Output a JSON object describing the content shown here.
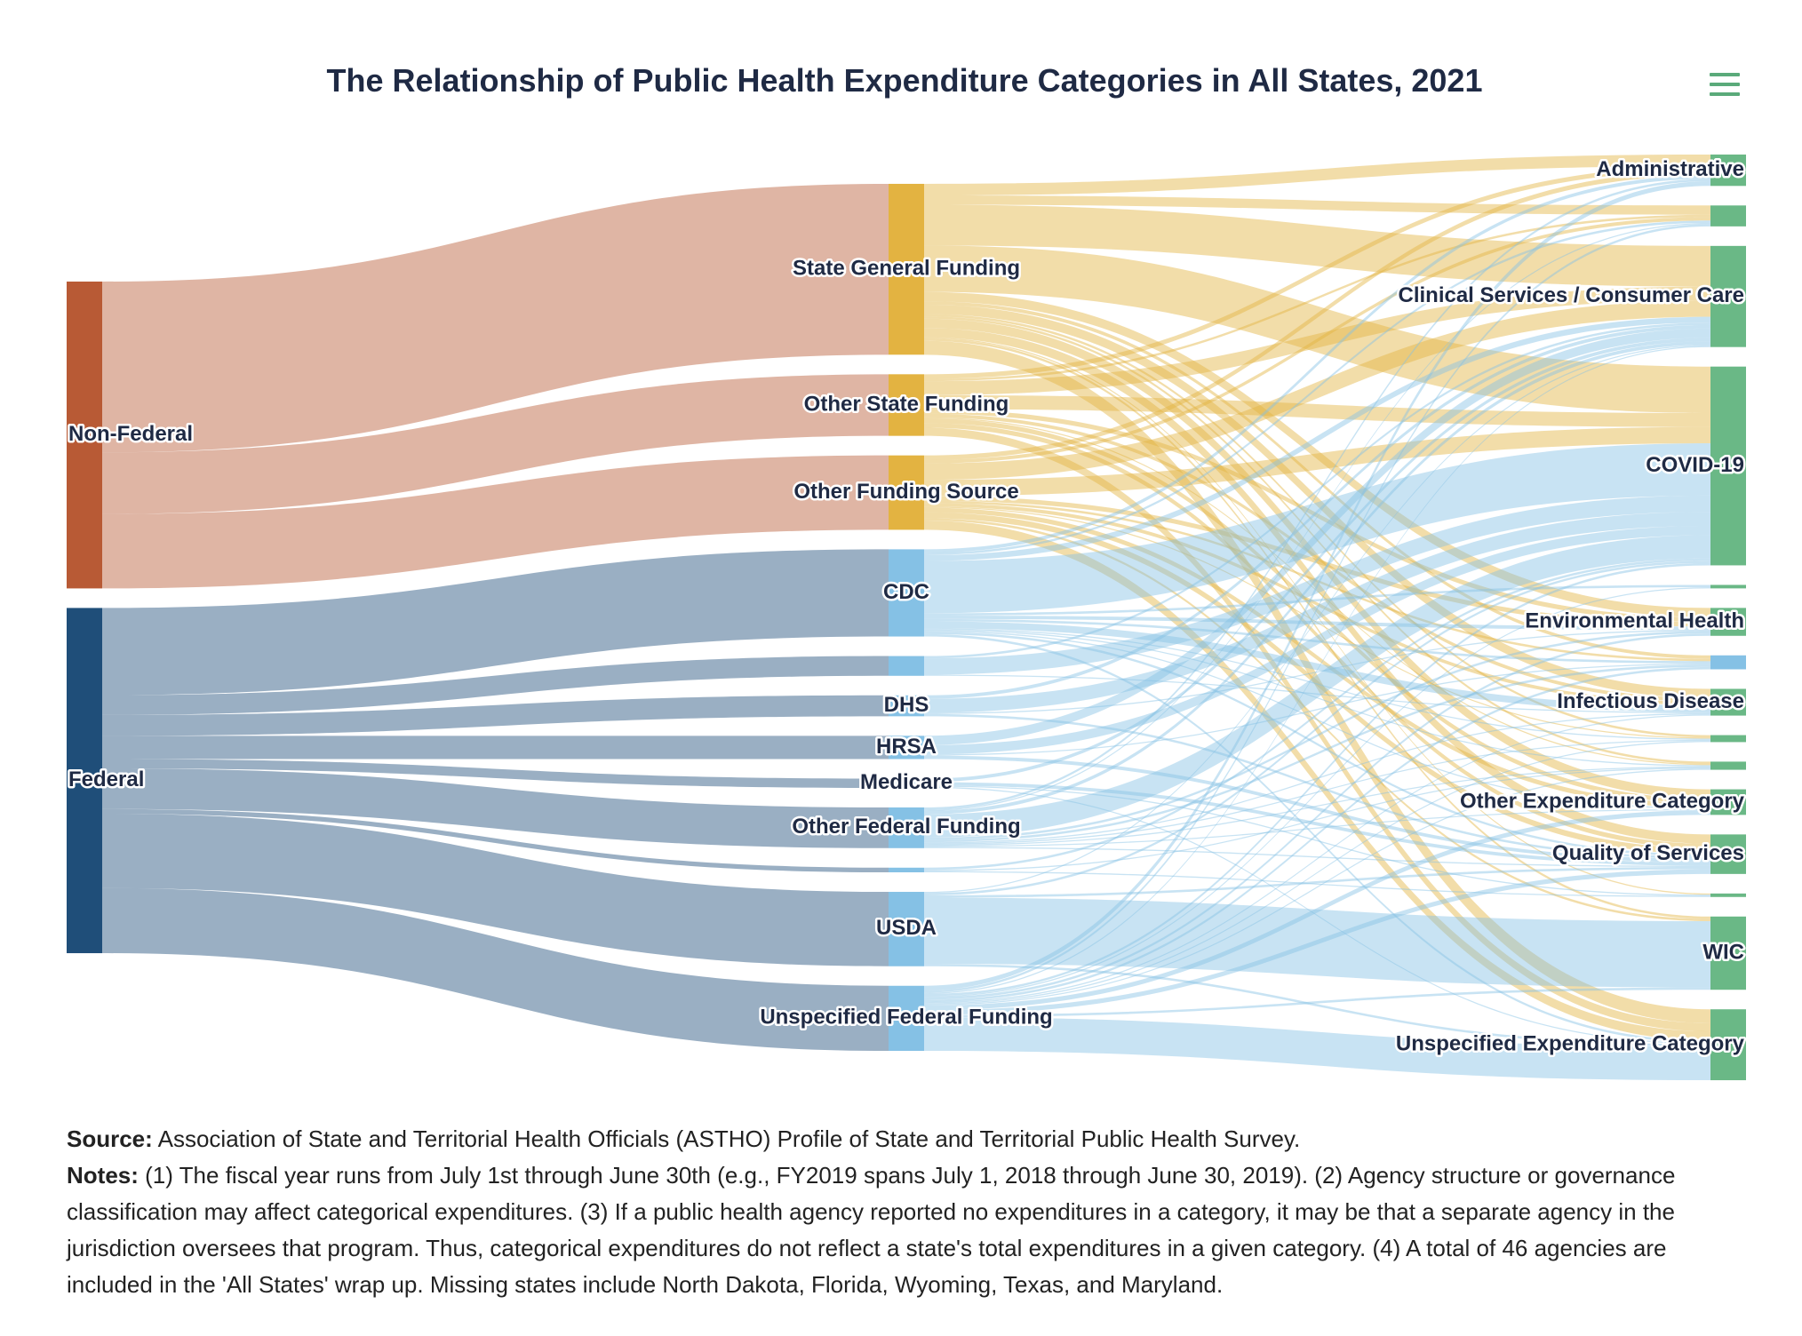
{
  "chart_data": {
    "type": "sankey",
    "title": "The Relationship of Public Health Expenditure Categories in All States, 2021",
    "nodes": [
      {
        "name": "Non-Federal",
        "color": "#b85a35"
      },
      {
        "name": "Federal",
        "color": "#1f4e79"
      },
      {
        "name": "State General Funding",
        "color": "#e3b341"
      },
      {
        "name": "Other State Funding",
        "color": "#e3b341"
      },
      {
        "name": "Other Funding Source",
        "color": "#e3b341"
      },
      {
        "name": "CDC",
        "color": "#85c1e5"
      },
      {
        "name": null,
        "color": "#85c1e5"
      },
      {
        "name": "DHS",
        "color": "#85c1e5"
      },
      {
        "name": "HRSA",
        "color": "#85c1e5"
      },
      {
        "name": "Medicare",
        "color": "#85c1e5"
      },
      {
        "name": "Other Federal Funding",
        "color": "#85c1e5"
      },
      {
        "name": null,
        "color": "#85c1e5"
      },
      {
        "name": "USDA",
        "color": "#85c1e5"
      },
      {
        "name": "Unspecified Federal Funding",
        "color": "#85c1e5"
      },
      {
        "name": "Administrative",
        "color": "#6ab886"
      },
      {
        "name": null,
        "color": "#6ab886"
      },
      {
        "name": "Clinical Services / Consumer Care",
        "color": "#6ab886"
      },
      {
        "name": "COVID-19",
        "color": "#6ab886"
      },
      {
        "name": null,
        "color": "#6ab886"
      },
      {
        "name": "Environmental Health",
        "color": "#6ab886"
      },
      {
        "name": null,
        "color": "#85c1e5"
      },
      {
        "name": "Infectious Disease",
        "color": "#6ab886"
      },
      {
        "name": null,
        "color": "#6ab886"
      },
      {
        "name": null,
        "color": "#6ab886"
      },
      {
        "name": "Other Expenditure Category",
        "color": "#6ab886"
      },
      {
        "name": "Quality of Services",
        "color": "#6ab886"
      },
      {
        "name": null,
        "color": "#6ab886"
      },
      {
        "name": "WIC",
        "color": "#6ab886"
      },
      {
        "name": "Unspecified Expenditure Category",
        "color": "#6ab886"
      }
    ],
    "links": [
      {
        "source": 0,
        "target": 2,
        "value": 147
      },
      {
        "source": 0,
        "target": 3,
        "value": 53
      },
      {
        "source": 0,
        "target": 4,
        "value": 64
      },
      {
        "source": 1,
        "target": 5,
        "value": 75
      },
      {
        "source": 1,
        "target": 6,
        "value": 17
      },
      {
        "source": 1,
        "target": 7,
        "value": 18
      },
      {
        "source": 1,
        "target": 8,
        "value": 20
      },
      {
        "source": 1,
        "target": 9,
        "value": 8
      },
      {
        "source": 1,
        "target": 10,
        "value": 35
      },
      {
        "source": 1,
        "target": 11,
        "value": 4
      },
      {
        "source": 1,
        "target": 12,
        "value": 64
      },
      {
        "source": 1,
        "target": 13,
        "value": 56
      },
      {
        "source": 2,
        "target": 14,
        "value": 10
      },
      {
        "source": 2,
        "target": 15,
        "value": 8
      },
      {
        "source": 2,
        "target": 16,
        "value": 35
      },
      {
        "source": 2,
        "target": 17,
        "value": 40
      },
      {
        "source": 2,
        "target": 19,
        "value": 8
      },
      {
        "source": 2,
        "target": 20,
        "value": 3
      },
      {
        "source": 2,
        "target": 21,
        "value": 8
      },
      {
        "source": 2,
        "target": 22,
        "value": 2
      },
      {
        "source": 2,
        "target": 23,
        "value": 2
      },
      {
        "source": 2,
        "target": 24,
        "value": 8
      },
      {
        "source": 2,
        "target": 25,
        "value": 8
      },
      {
        "source": 2,
        "target": 26,
        "value": 1
      },
      {
        "source": 2,
        "target": 27,
        "value": 2
      },
      {
        "source": 2,
        "target": 28,
        "value": 12
      },
      {
        "source": 3,
        "target": 14,
        "value": 4
      },
      {
        "source": 3,
        "target": 15,
        "value": 2
      },
      {
        "source": 3,
        "target": 16,
        "value": 12
      },
      {
        "source": 3,
        "target": 17,
        "value": 12
      },
      {
        "source": 3,
        "target": 19,
        "value": 4
      },
      {
        "source": 3,
        "target": 21,
        "value": 3
      },
      {
        "source": 3,
        "target": 23,
        "value": 1
      },
      {
        "source": 3,
        "target": 24,
        "value": 4
      },
      {
        "source": 3,
        "target": 25,
        "value": 4
      },
      {
        "source": 3,
        "target": 28,
        "value": 7
      },
      {
        "source": 4,
        "target": 14,
        "value": 4
      },
      {
        "source": 4,
        "target": 15,
        "value": 3
      },
      {
        "source": 4,
        "target": 16,
        "value": 14
      },
      {
        "source": 4,
        "target": 17,
        "value": 14
      },
      {
        "source": 4,
        "target": 19,
        "value": 4
      },
      {
        "source": 4,
        "target": 20,
        "value": 2
      },
      {
        "source": 4,
        "target": 21,
        "value": 3
      },
      {
        "source": 4,
        "target": 22,
        "value": 1
      },
      {
        "source": 4,
        "target": 24,
        "value": 4
      },
      {
        "source": 4,
        "target": 25,
        "value": 5
      },
      {
        "source": 4,
        "target": 27,
        "value": 2
      },
      {
        "source": 4,
        "target": 28,
        "value": 8
      },
      {
        "source": 5,
        "target": 14,
        "value": 3
      },
      {
        "source": 5,
        "target": 15,
        "value": 2
      },
      {
        "source": 5,
        "target": 16,
        "value": 5
      },
      {
        "source": 5,
        "target": 17,
        "value": 45
      },
      {
        "source": 5,
        "target": 18,
        "value": 2
      },
      {
        "source": 5,
        "target": 19,
        "value": 3
      },
      {
        "source": 5,
        "target": 20,
        "value": 2
      },
      {
        "source": 5,
        "target": 21,
        "value": 6
      },
      {
        "source": 5,
        "target": 22,
        "value": 1
      },
      {
        "source": 5,
        "target": 23,
        "value": 1
      },
      {
        "source": 5,
        "target": 24,
        "value": 1
      },
      {
        "source": 5,
        "target": 25,
        "value": 2
      },
      {
        "source": 5,
        "target": 28,
        "value": 2
      },
      {
        "source": 6,
        "target": 16,
        "value": 2
      },
      {
        "source": 6,
        "target": 17,
        "value": 14
      },
      {
        "source": 6,
        "target": 21,
        "value": 1
      },
      {
        "source": 7,
        "target": 16,
        "value": 3
      },
      {
        "source": 7,
        "target": 17,
        "value": 12
      },
      {
        "source": 7,
        "target": 19,
        "value": 1
      },
      {
        "source": 7,
        "target": 25,
        "value": 2
      },
      {
        "source": 8,
        "target": 16,
        "value": 8
      },
      {
        "source": 8,
        "target": 17,
        "value": 8
      },
      {
        "source": 8,
        "target": 20,
        "value": 1
      },
      {
        "source": 8,
        "target": 25,
        "value": 3
      },
      {
        "source": 9,
        "target": 16,
        "value": 3
      },
      {
        "source": 9,
        "target": 25,
        "value": 3
      },
      {
        "source": 9,
        "target": 26,
        "value": 1
      },
      {
        "source": 9,
        "target": 28,
        "value": 1
      },
      {
        "source": 10,
        "target": 14,
        "value": 2
      },
      {
        "source": 10,
        "target": 15,
        "value": 1
      },
      {
        "source": 10,
        "target": 16,
        "value": 3
      },
      {
        "source": 10,
        "target": 17,
        "value": 20
      },
      {
        "source": 10,
        "target": 19,
        "value": 2
      },
      {
        "source": 10,
        "target": 20,
        "value": 2
      },
      {
        "source": 10,
        "target": 21,
        "value": 1
      },
      {
        "source": 10,
        "target": 22,
        "value": 1
      },
      {
        "source": 10,
        "target": 23,
        "value": 1
      },
      {
        "source": 10,
        "target": 24,
        "value": 1
      },
      {
        "source": 10,
        "target": 25,
        "value": 1
      },
      {
        "source": 11,
        "target": 17,
        "value": 2
      },
      {
        "source": 11,
        "target": 23,
        "value": 1
      },
      {
        "source": 11,
        "target": 26,
        "value": 1
      },
      {
        "source": 12,
        "target": 16,
        "value": 1
      },
      {
        "source": 12,
        "target": 17,
        "value": 2
      },
      {
        "source": 12,
        "target": 25,
        "value": 2
      },
      {
        "source": 12,
        "target": 27,
        "value": 57
      },
      {
        "source": 12,
        "target": 28,
        "value": 2
      },
      {
        "source": 13,
        "target": 14,
        "value": 4
      },
      {
        "source": 13,
        "target": 15,
        "value": 2
      },
      {
        "source": 13,
        "target": 16,
        "value": 1
      },
      {
        "source": 13,
        "target": 17,
        "value": 2
      },
      {
        "source": 13,
        "target": 18,
        "value": 1
      },
      {
        "source": 13,
        "target": 19,
        "value": 2
      },
      {
        "source": 13,
        "target": 20,
        "value": 2
      },
      {
        "source": 13,
        "target": 21,
        "value": 1
      },
      {
        "source": 13,
        "target": 22,
        "value": 1
      },
      {
        "source": 13,
        "target": 23,
        "value": 1
      },
      {
        "source": 13,
        "target": 24,
        "value": 4
      },
      {
        "source": 13,
        "target": 25,
        "value": 4
      },
      {
        "source": 13,
        "target": 27,
        "value": 2
      },
      {
        "source": 13,
        "target": 28,
        "value": 29
      }
    ]
  },
  "footer": {
    "source_label": "Source:",
    "source": "Association of State and Territorial Health Officials (ASTHO) Profile of State and Territorial Public Health Survey.",
    "notes_label": "Notes:",
    "notes": "(1) The fiscal year runs from July 1st through June 30th (e.g., FY2019 spans July 1, 2018 through June 30, 2019). (2) Agency structure or governance classification may affect categorical expenditures. (3) If a public health agency reported no expenditures in a category, it may be that a separate agency in the jurisdiction oversees that program. Thus, categorical expenditures do not reflect a state's total expenditures in a given category. (4) A total of 46 agencies are included in the 'All States' wrap up. Missing states include North Dakota, Florida, Wyoming, Texas, and Maryland."
  }
}
